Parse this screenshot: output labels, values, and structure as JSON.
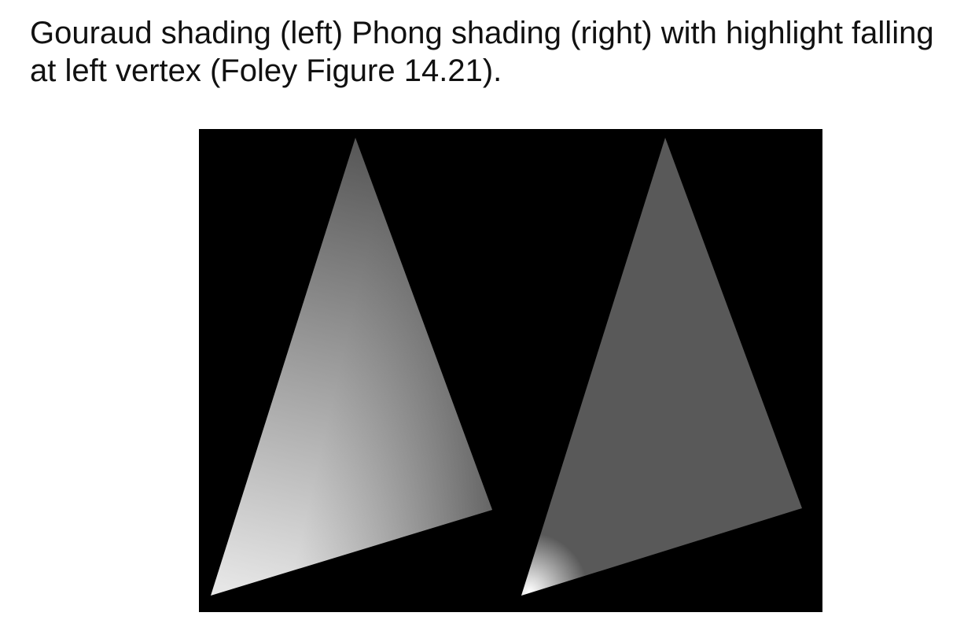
{
  "caption": "Gouraud shading (left) Phong shading (right) with highlight falling at left vertex (Foley Figure 14.21).",
  "figure": {
    "background_color": "#000000",
    "panels": [
      {
        "id": "gouraud",
        "shading_model": "gouraud",
        "vertex_colors": {
          "top": "#585858",
          "right": "#4a4a4a",
          "bottom_left": "#e6e6e6"
        }
      },
      {
        "id": "phong",
        "shading_model": "phong",
        "base_color": "#595959",
        "highlight_color": "#ffffff",
        "highlight_at": "bottom-left vertex"
      }
    ]
  }
}
